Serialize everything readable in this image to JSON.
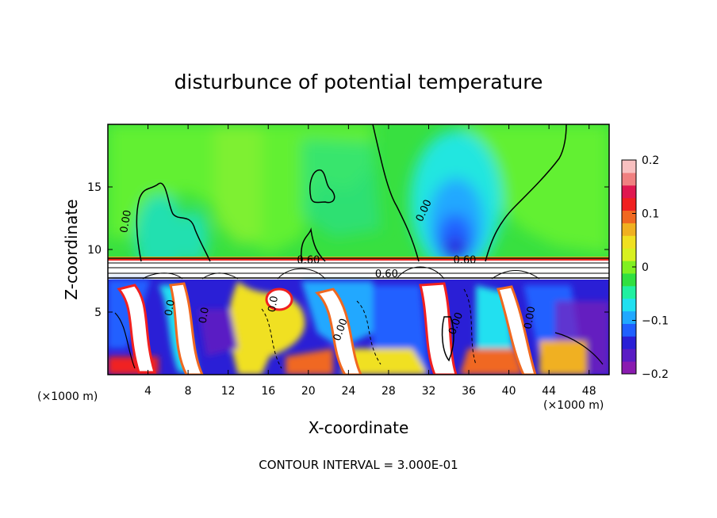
{
  "chart_data": {
    "type": "heatmap",
    "title": "disturbunce of potential temperature",
    "xlabel": "X-coordinate",
    "ylabel": "Z-coordinate",
    "x_unit_left": "(×1000 m)",
    "x_unit_right": "(×1000 m)",
    "xlim": [
      0,
      50
    ],
    "ylim": [
      0,
      20
    ],
    "x_ticks": [
      4,
      8,
      12,
      16,
      20,
      24,
      28,
      32,
      36,
      40,
      44,
      48
    ],
    "y_ticks": [
      5,
      10,
      15
    ],
    "colorbar": {
      "range": [
        -0.2,
        0.2
      ],
      "ticks": [
        {
          "value": 0.2,
          "label": "0.2"
        },
        {
          "value": 0.1,
          "label": "0.1"
        },
        {
          "value": 0.0,
          "label": "0"
        },
        {
          "value": -0.1,
          "label": "−0.1"
        },
        {
          "value": -0.2,
          "label": "−0.2"
        }
      ],
      "colors": [
        "#8a1bb0",
        "#5a1cc4",
        "#2a1fd6",
        "#2060ff",
        "#20a8ff",
        "#20e0f0",
        "#20f0a0",
        "#30e040",
        "#80f020",
        "#d8f020",
        "#f0e020",
        "#f0b020",
        "#f06820",
        "#f02020",
        "#e01850",
        "#f08080",
        "#f8c0c0"
      ]
    },
    "contour_labels": [
      {
        "text": "0.00",
        "x": 2.1,
        "z": 12.2,
        "rot": -80
      },
      {
        "text": "0.00",
        "x": 31.8,
        "z": 13.0,
        "rot": -65
      },
      {
        "text": "0.60",
        "x": 20.0,
        "z": 8.9,
        "rot": 0
      },
      {
        "text": "0.60",
        "x": 27.8,
        "z": 7.8,
        "rot": 0
      },
      {
        "text": "0.60",
        "x": 35.6,
        "z": 8.9,
        "rot": 0
      },
      {
        "text": "0.0",
        "x": 6.5,
        "z": 5.3,
        "rot": -80
      },
      {
        "text": "0.0",
        "x": 9.9,
        "z": 4.7,
        "rot": -80
      },
      {
        "text": "0.0",
        "x": 16.8,
        "z": 5.6,
        "rot": -80
      },
      {
        "text": "0.00",
        "x": 23.5,
        "z": 3.5,
        "rot": -70
      },
      {
        "text": "0.00",
        "x": 35.0,
        "z": 4.0,
        "rot": -70
      },
      {
        "text": "0.00",
        "x": 42.4,
        "z": 4.5,
        "rot": -80
      }
    ],
    "contour_interval": "CONTOUR INTERVAL = 3.000E-01"
  }
}
